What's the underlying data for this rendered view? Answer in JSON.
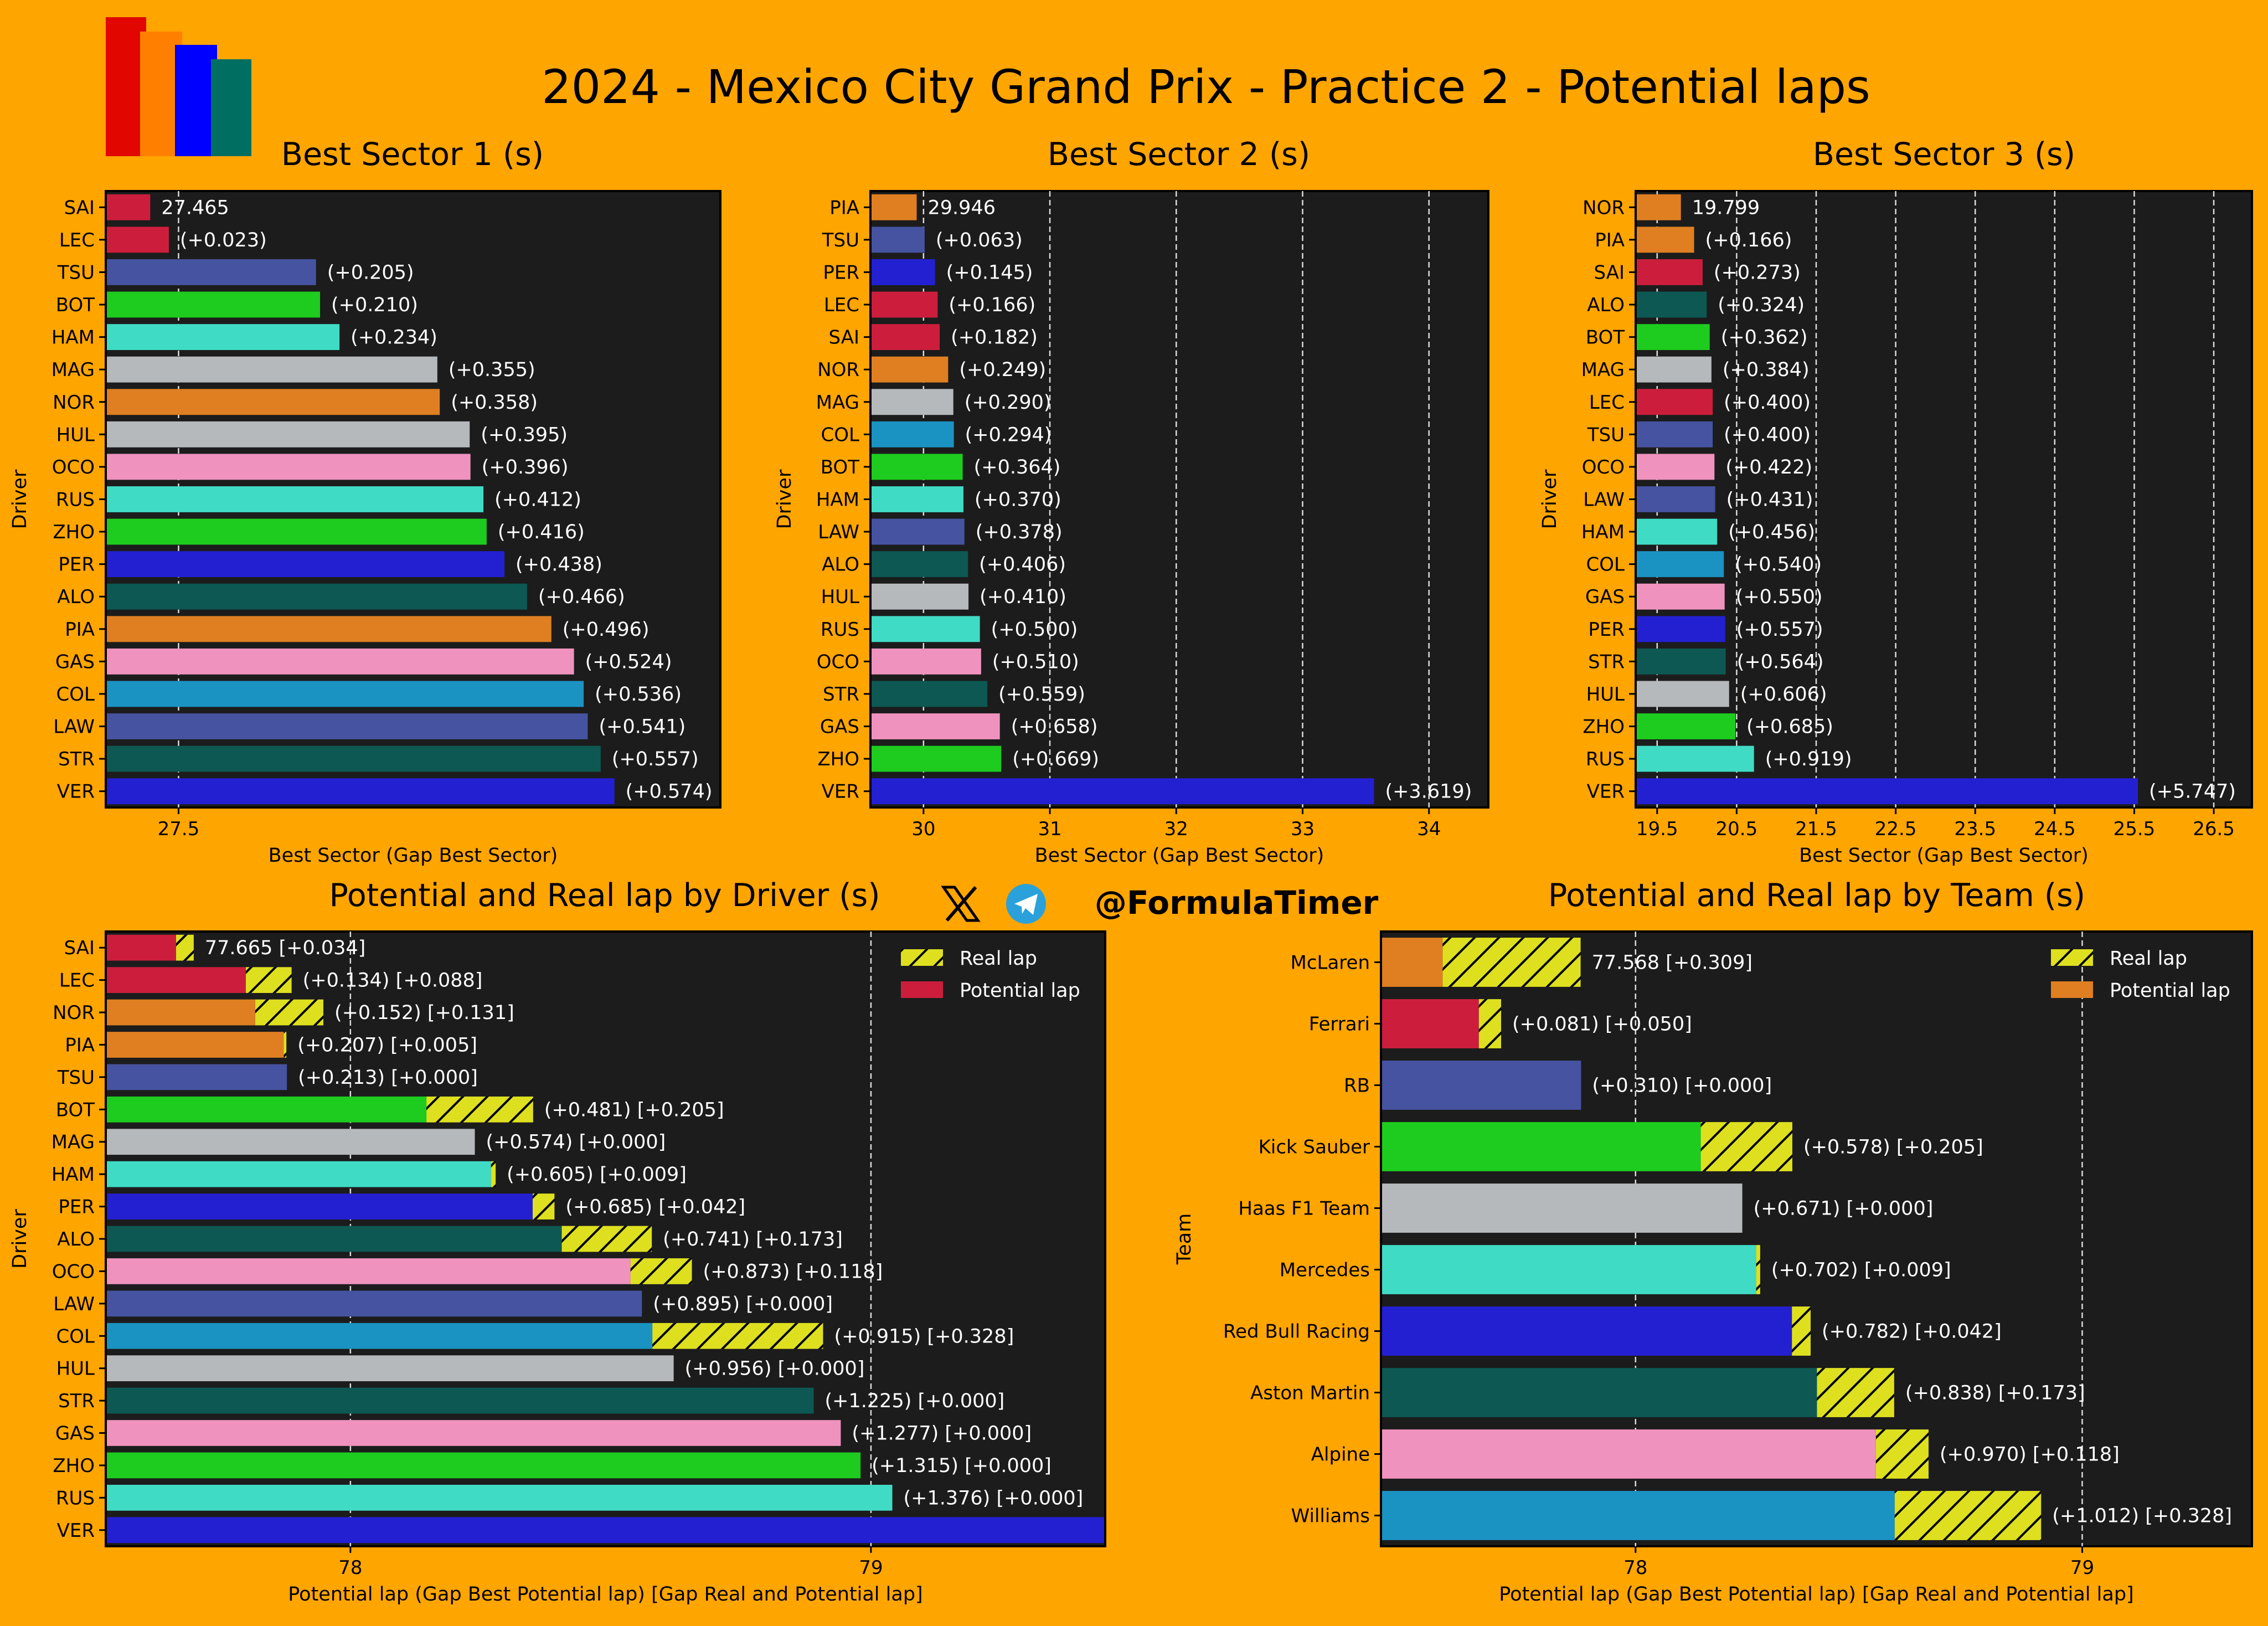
{
  "title": "2024 - Mexico City Grand Prix - Practice 2 - Potential laps",
  "brand": {
    "handle": "@FormulaTimer",
    "icons": [
      "x-logo-icon",
      "telegram-icon"
    ]
  },
  "colors": {
    "background": "#FFA500",
    "panel": "#1C1C1C",
    "hatch": "#DEE01F",
    "McLaren": "#DF7F21",
    "Ferrari": "#CC1E3C",
    "RB": "#4553A0",
    "Kick Sauber": "#1DCC1E",
    "Haas F1 Team": "#B6B9BC",
    "Mercedes": "#40DBC5",
    "Red Bull Racing": "#2320D2",
    "Aston Martin": "#0D5852",
    "Alpine": "#EF92BE",
    "Williams": "#1B93C2"
  },
  "driver_team": {
    "SAI": "Ferrari",
    "LEC": "Ferrari",
    "NOR": "McLaren",
    "PIA": "McLaren",
    "TSU": "RB",
    "LAW": "RB",
    "BOT": "Kick Sauber",
    "ZHO": "Kick Sauber",
    "MAG": "Haas F1 Team",
    "HUL": "Haas F1 Team",
    "HAM": "Mercedes",
    "RUS": "Mercedes",
    "PER": "Red Bull Racing",
    "VER": "Red Bull Racing",
    "ALO": "Aston Martin",
    "STR": "Aston Martin",
    "OCO": "Alpine",
    "GAS": "Alpine",
    "COL": "Williams"
  },
  "chart_data": [
    {
      "type": "bar",
      "orientation": "horizontal",
      "title": "Best Sector 1 (s)",
      "xlabel": "Best Sector (Gap Best Sector)",
      "ylabel": "Driver",
      "xlim": [
        27.41,
        28.17
      ],
      "xticks": [
        "27.5"
      ],
      "grid": true,
      "best": 27.465,
      "best_label": "27.465",
      "categories": [
        "SAI",
        "LEC",
        "TSU",
        "BOT",
        "HAM",
        "MAG",
        "NOR",
        "HUL",
        "OCO",
        "RUS",
        "ZHO",
        "PER",
        "ALO",
        "PIA",
        "GAS",
        "COL",
        "LAW",
        "STR",
        "VER"
      ],
      "gaps": [
        "0",
        "+0.023",
        "+0.205",
        "+0.210",
        "+0.234",
        "+0.355",
        "+0.358",
        "+0.395",
        "+0.396",
        "+0.412",
        "+0.416",
        "+0.438",
        "+0.466",
        "+0.496",
        "+0.524",
        "+0.536",
        "+0.541",
        "+0.557",
        "+0.574"
      ]
    },
    {
      "type": "bar",
      "orientation": "horizontal",
      "title": "Best Sector 2 (s)",
      "xlabel": "Best Sector (Gap Best Sector)",
      "ylabel": "Driver",
      "xlim": [
        29.58,
        34.47
      ],
      "xticks": [
        "30",
        "31",
        "32",
        "33",
        "34"
      ],
      "grid": true,
      "best": 29.946,
      "best_label": "29.946",
      "categories": [
        "PIA",
        "TSU",
        "PER",
        "LEC",
        "SAI",
        "NOR",
        "MAG",
        "COL",
        "BOT",
        "HAM",
        "LAW",
        "ALO",
        "HUL",
        "RUS",
        "OCO",
        "STR",
        "GAS",
        "ZHO",
        "VER"
      ],
      "gaps": [
        "0",
        "+0.063",
        "+0.145",
        "+0.166",
        "+0.182",
        "+0.249",
        "+0.290",
        "+0.294",
        "+0.364",
        "+0.370",
        "+0.378",
        "+0.406",
        "+0.410",
        "+0.500",
        "+0.510",
        "+0.559",
        "+0.658",
        "+0.669",
        "+3.619"
      ]
    },
    {
      "type": "bar",
      "orientation": "horizontal",
      "title": "Best Sector 3 (s)",
      "xlabel": "Best Sector (Gap Best Sector)",
      "ylabel": "Driver",
      "xlim": [
        19.23,
        26.98
      ],
      "xticks": [
        "19.5",
        "20.5",
        "21.5",
        "22.5",
        "23.5",
        "24.5",
        "25.5",
        "26.5"
      ],
      "grid": true,
      "best": 19.799,
      "best_label": "19.799",
      "categories": [
        "NOR",
        "PIA",
        "SAI",
        "ALO",
        "BOT",
        "MAG",
        "LEC",
        "TSU",
        "OCO",
        "LAW",
        "HAM",
        "COL",
        "GAS",
        "PER",
        "STR",
        "HUL",
        "ZHO",
        "RUS",
        "VER"
      ],
      "gaps": [
        "0",
        "+0.166",
        "+0.273",
        "+0.324",
        "+0.362",
        "+0.384",
        "+0.400",
        "+0.400",
        "+0.422",
        "+0.431",
        "+0.456",
        "+0.540",
        "+0.550",
        "+0.557",
        "+0.564",
        "+0.606",
        "+0.685",
        "+0.919",
        "+5.747"
      ]
    },
    {
      "type": "bar",
      "orientation": "horizontal",
      "stacked_hatch": true,
      "title": "Potential and Real lap by Driver (s)",
      "xlabel": "Potential lap (Gap Best Potential lap) [Gap Real and Potential lap]",
      "ylabel": "Driver",
      "xlim": [
        77.53,
        79.45
      ],
      "xticks": [
        "78",
        "79"
      ],
      "grid": true,
      "legend": {
        "position": "top-right",
        "entries": [
          "Real lap",
          "Potential lap"
        ]
      },
      "best": 77.665,
      "best_label": "77.665",
      "categories": [
        "SAI",
        "LEC",
        "NOR",
        "PIA",
        "TSU",
        "BOT",
        "MAG",
        "HAM",
        "PER",
        "ALO",
        "OCO",
        "LAW",
        "COL",
        "HUL",
        "STR",
        "GAS",
        "ZHO",
        "RUS",
        "VER"
      ],
      "potential_gaps": [
        "0",
        "+0.134",
        "+0.152",
        "+0.207",
        "+0.213",
        "+0.481",
        "+0.574",
        "+0.605",
        "+0.685",
        "+0.741",
        "+0.873",
        "+0.895",
        "+0.915",
        "+0.956",
        "+1.225",
        "+1.277",
        "+1.315",
        "+1.376",
        null
      ],
      "real_gaps": [
        "+0.034",
        "+0.088",
        "+0.131",
        "+0.005",
        "+0.000",
        "+0.205",
        "+0.000",
        "+0.009",
        "+0.042",
        "+0.173",
        "+0.118",
        "+0.000",
        "+0.328",
        "+0.000",
        "+0.000",
        "+0.000",
        "+0.000",
        "+0.000",
        null
      ]
    },
    {
      "type": "bar",
      "orientation": "horizontal",
      "stacked_hatch": true,
      "title": "Potential and Real lap by Team (s)",
      "xlabel": "Potential lap (Gap Best Potential lap) [Gap Real and Potential lap]",
      "ylabel": "Team",
      "xlim": [
        77.43,
        79.38
      ],
      "xticks": [
        "78",
        "79"
      ],
      "grid": true,
      "legend": {
        "position": "top-right",
        "entries": [
          "Real lap",
          "Potential lap"
        ]
      },
      "best": 77.568,
      "best_label": "77.568",
      "categories": [
        "McLaren",
        "Ferrari",
        "RB",
        "Kick Sauber",
        "Haas F1 Team",
        "Mercedes",
        "Red Bull Racing",
        "Aston Martin",
        "Alpine",
        "Williams"
      ],
      "potential_gaps": [
        "0",
        "+0.081",
        "+0.310",
        "+0.578",
        "+0.671",
        "+0.702",
        "+0.782",
        "+0.838",
        "+0.970",
        "+1.012"
      ],
      "real_gaps": [
        "+0.309",
        "+0.050",
        "+0.000",
        "+0.205",
        "+0.000",
        "+0.009",
        "+0.042",
        "+0.173",
        "+0.118",
        "+0.328"
      ]
    }
  ]
}
